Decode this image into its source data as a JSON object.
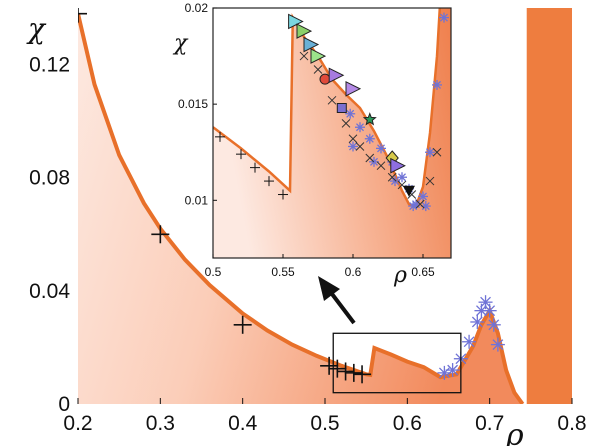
{
  "chart_data": [
    {
      "type": "area",
      "panel": "main",
      "title": "",
      "xlabel": "ρ",
      "ylabel": "χ",
      "xlim": [
        0.2,
        0.8
      ],
      "ylim": [
        0,
        0.14
      ],
      "xticks": [
        "0.2",
        "0.3",
        "0.4",
        "0.5",
        "0.6",
        "0.7",
        "0.8"
      ],
      "yticks": [
        "0",
        "0.04",
        "0.08",
        "0.12"
      ],
      "xtick_values": [
        0.2,
        0.3,
        0.4,
        0.5,
        0.6,
        0.7,
        0.8
      ],
      "ytick_values": [
        0,
        0.04,
        0.08,
        0.12
      ],
      "colors": {
        "curve": "#e8702a",
        "fill_light": "#fdf0ea",
        "fill_dark": "#f08a5d",
        "band": "#ee7d3f",
        "stars": "#6f73d6"
      },
      "boundary_curve": {
        "x": [
          0.2,
          0.22,
          0.25,
          0.28,
          0.3,
          0.33,
          0.36,
          0.4,
          0.43,
          0.46,
          0.49,
          0.52,
          0.55,
          0.555,
          0.56,
          0.58,
          0.6,
          0.62,
          0.64,
          0.66,
          0.68,
          0.69,
          0.7,
          0.71,
          0.72,
          0.73,
          0.74
        ],
        "y": [
          0.138,
          0.113,
          0.088,
          0.071,
          0.062,
          0.051,
          0.042,
          0.032,
          0.026,
          0.021,
          0.017,
          0.0135,
          0.0105,
          0.0103,
          0.0198,
          0.0175,
          0.015,
          0.013,
          0.0095,
          0.0105,
          0.0205,
          0.028,
          0.033,
          0.025,
          0.012,
          0.004,
          0.0
        ]
      },
      "vertical_band": {
        "x_range": [
          0.745,
          0.8
        ],
        "y_range": [
          0,
          0.14
        ]
      },
      "plus_markers": {
        "x": [
          0.2,
          0.3,
          0.4,
          0.505,
          0.515,
          0.525,
          0.535,
          0.545
        ],
        "y": [
          0.138,
          0.06,
          0.028,
          0.0135,
          0.0125,
          0.0115,
          0.011,
          0.0105
        ]
      },
      "star_markers": {
        "x": [
          0.645,
          0.655,
          0.665,
          0.675,
          0.685,
          0.69,
          0.695,
          0.7,
          0.705,
          0.71
        ],
        "y": [
          0.011,
          0.012,
          0.016,
          0.022,
          0.029,
          0.033,
          0.036,
          0.033,
          0.028,
          0.021
        ]
      },
      "zoom_box": {
        "x_range": [
          0.51,
          0.665
        ],
        "y_range": [
          0.004,
          0.025
        ]
      }
    },
    {
      "type": "scatter",
      "panel": "inset",
      "title": "",
      "xlabel": "ρ",
      "ylabel": "χ",
      "xlim": [
        0.5,
        0.67
      ],
      "ylim": [
        0.007,
        0.02
      ],
      "xticks": [
        "0.5",
        "0.55",
        "0.6",
        "0.65"
      ],
      "yticks": [
        "0.01",
        "0.015",
        "0.02"
      ],
      "xtick_values": [
        0.5,
        0.55,
        0.6,
        0.65
      ],
      "ytick_values": [
        0.01,
        0.015,
        0.02
      ],
      "boundary_curve": {
        "x": [
          0.5,
          0.52,
          0.54,
          0.555,
          0.557,
          0.565,
          0.575,
          0.585,
          0.595,
          0.605,
          0.615,
          0.625,
          0.635,
          0.64,
          0.645,
          0.65,
          0.655,
          0.66,
          0.662
        ],
        "y": [
          0.0138,
          0.0127,
          0.0115,
          0.0105,
          0.0195,
          0.0185,
          0.0175,
          0.0163,
          0.0155,
          0.0148,
          0.0136,
          0.0122,
          0.0105,
          0.0098,
          0.0097,
          0.0107,
          0.0135,
          0.0175,
          0.02
        ]
      },
      "plus_markers": {
        "x": [
          0.505,
          0.52,
          0.53,
          0.54,
          0.55
        ],
        "y": [
          0.0133,
          0.0124,
          0.0117,
          0.011,
          0.0103
        ]
      },
      "x_markers": {
        "x": [
          0.565,
          0.575,
          0.585,
          0.595,
          0.6,
          0.605,
          0.612,
          0.62,
          0.628,
          0.635,
          0.642,
          0.648,
          0.655,
          0.66
        ],
        "y": [
          0.0175,
          0.0168,
          0.0152,
          0.014,
          0.0132,
          0.0128,
          0.0122,
          0.0118,
          0.0112,
          0.0108,
          0.0103,
          0.0098,
          0.011,
          0.0125
        ]
      },
      "star_markers": {
        "x": [
          0.598,
          0.605,
          0.612,
          0.62,
          0.628,
          0.635,
          0.64,
          0.645,
          0.65,
          0.655,
          0.66,
          0.665,
          0.6,
          0.615,
          0.63,
          0.643,
          0.652
        ],
        "y": [
          0.0145,
          0.0138,
          0.0132,
          0.0127,
          0.012,
          0.0112,
          0.0106,
          0.0098,
          0.0102,
          0.0125,
          0.016,
          0.0195,
          0.0128,
          0.012,
          0.011,
          0.0097,
          0.0097
        ]
      },
      "colored_markers": [
        {
          "shape": "triangle-right",
          "color": "#7ad7e0",
          "x": 0.559,
          "y": 0.0193
        },
        {
          "shape": "triangle-right",
          "color": "#8bd06a",
          "x": 0.565,
          "y": 0.0188
        },
        {
          "shape": "triangle-right",
          "color": "#6ab0d6",
          "x": 0.57,
          "y": 0.0181
        },
        {
          "shape": "triangle-right",
          "color": "#9be38a",
          "x": 0.575,
          "y": 0.0175
        },
        {
          "shape": "circle",
          "color": "#e04a3a",
          "x": 0.58,
          "y": 0.0163
        },
        {
          "shape": "triangle-right",
          "color": "#a77be0",
          "x": 0.588,
          "y": 0.0165
        },
        {
          "shape": "square",
          "color": "#7a6fd0",
          "x": 0.592,
          "y": 0.0148
        },
        {
          "shape": "triangle-right",
          "color": "#b48ae6",
          "x": 0.6,
          "y": 0.0158
        },
        {
          "shape": "star",
          "color": "#2a9a5a",
          "x": 0.612,
          "y": 0.0142
        },
        {
          "shape": "diamond",
          "color": "#d6c94a",
          "x": 0.628,
          "y": 0.0122
        },
        {
          "shape": "triangle-right",
          "color": "#8e6ee0",
          "x": 0.632,
          "y": 0.0118
        },
        {
          "shape": "triangle-down",
          "color": "#111111",
          "x": 0.64,
          "y": 0.0105
        }
      ]
    }
  ]
}
